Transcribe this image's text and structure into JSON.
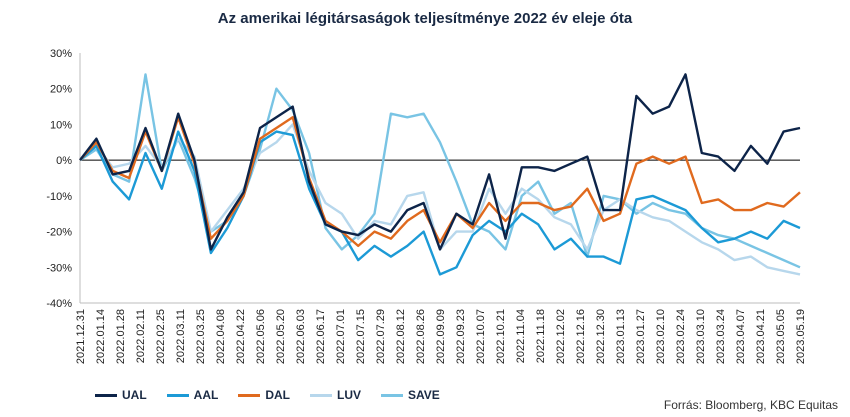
{
  "chart_data": {
    "type": "line",
    "title": "Az amerikai légitársaságok teljesítménye 2022 év eleje óta",
    "xlabel": "",
    "ylabel": "",
    "ylim": [
      -40,
      30
    ],
    "y_ticks": [
      "30%",
      "20%",
      "10%",
      "0%",
      "-10%",
      "-20%",
      "-30%",
      "-40%"
    ],
    "x_ticks": [
      "2021.12.31",
      "2022.01.14",
      "2022.01.28",
      "2022.02.11",
      "2022.02.25",
      "2022.03.11",
      "2022.03.25",
      "2022.04.08",
      "2022.04.22",
      "2022.05.06",
      "2022.05.20",
      "2022.06.03",
      "2022.06.17",
      "2022.07.01",
      "2022.07.15",
      "2022.07.29",
      "2022.08.12",
      "2022.08.26",
      "2022.09.09",
      "2022.09.23",
      "2022.10.07",
      "2022.10.21",
      "2022.11.04",
      "2022.11.18",
      "2022.12.02",
      "2022.12.16",
      "2022.12.30",
      "2023.01.13",
      "2023.01.27",
      "2023.02.10",
      "2023.02.24",
      "2023.03.10",
      "2023.03.24",
      "2023.04.07",
      "2023.04.21",
      "2023.05.05",
      "2023.05.19"
    ],
    "legend_position": "bottom-left",
    "grid": false,
    "series": [
      {
        "name": "UAL",
        "color": "#0d2449",
        "values": [
          0,
          6,
          -4,
          -3,
          9,
          -3,
          13,
          0,
          -25,
          -16,
          -9,
          9,
          12,
          15,
          -6,
          -18,
          -20,
          -21,
          -18,
          -20,
          -14,
          -12,
          -25,
          -15,
          -18,
          -4,
          -22,
          -2,
          -2,
          -3,
          -1,
          1,
          -14,
          -14,
          18,
          13,
          15,
          24,
          2,
          1,
          -3,
          4,
          -1,
          8,
          9
        ]
      },
      {
        "name": "AAL",
        "color": "#1c9ad6",
        "values": [
          0,
          4,
          -6,
          -11,
          2,
          -8,
          8,
          -3,
          -26,
          -19,
          -10,
          5,
          8,
          7,
          -8,
          -18,
          -20,
          -28,
          -24,
          -27,
          -24,
          -20,
          -32,
          -30,
          -21,
          -17,
          -20,
          -15,
          -18,
          -25,
          -22,
          -27,
          -27,
          -29,
          -11,
          -10,
          -12,
          -14,
          -19,
          -23,
          -22,
          -20,
          -22,
          -17,
          -19
        ]
      },
      {
        "name": "DAL",
        "color": "#e06a1e",
        "values": [
          0,
          5,
          -3,
          -5,
          8,
          -3,
          12,
          -1,
          -22,
          -17,
          -10,
          6,
          9,
          12,
          -5,
          -17,
          -20,
          -24,
          -20,
          -22,
          -17,
          -14,
          -23,
          -15,
          -19,
          -12,
          -17,
          -12,
          -12,
          -14,
          -13,
          -8,
          -17,
          -15,
          -1,
          1,
          -1,
          1,
          -12,
          -11,
          -14,
          -14,
          -12,
          -13,
          -9
        ]
      },
      {
        "name": "LUV",
        "color": "#b7d7ec",
        "values": [
          0,
          4,
          -2,
          -1,
          4,
          -2,
          6,
          1,
          -20,
          -14,
          -8,
          2,
          5,
          10,
          -3,
          -12,
          -15,
          -22,
          -17,
          -18,
          -10,
          -9,
          -25,
          -20,
          -20,
          -8,
          -15,
          -8,
          -11,
          -16,
          -18,
          -25,
          -14,
          -11,
          -14,
          -16,
          -17,
          -20,
          -23,
          -25,
          -28,
          -27,
          -30,
          -31,
          -32
        ]
      },
      {
        "name": "SAVE",
        "color": "#79c4e4",
        "values": [
          0,
          3,
          -4,
          -6,
          24,
          -3,
          6,
          -5,
          -20,
          -17,
          -10,
          3,
          20,
          14,
          2,
          -19,
          -25,
          -21,
          -15,
          13,
          12,
          13,
          5,
          -6,
          -18,
          -20,
          -25,
          -10,
          -6,
          -15,
          -12,
          -27,
          -10,
          -11,
          -15,
          -12,
          -14,
          -15,
          -19,
          -21,
          -22,
          -24,
          -26,
          -28,
          -30
        ]
      }
    ]
  },
  "source": "Forrás: Bloomberg,  KBC Equitas"
}
